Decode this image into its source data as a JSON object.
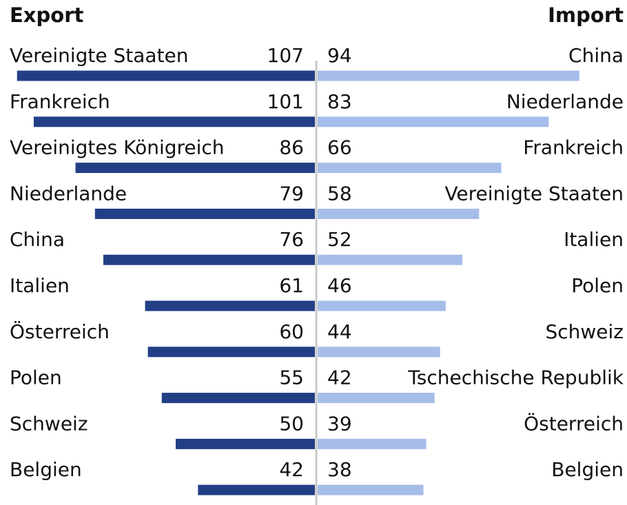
{
  "chart_data": [
    {
      "type": "bar",
      "title": "Export",
      "categories": [
        "Vereinigte Staaten",
        "Frankreich",
        "Vereinigtes Königreich",
        "Niederlande",
        "China",
        "Italien",
        "Österreich",
        "Polen",
        "Schweiz",
        "Belgien"
      ],
      "values": [
        107,
        101,
        86,
        79,
        76,
        61,
        60,
        55,
        50,
        42
      ],
      "color": "#223f86"
    },
    {
      "type": "bar",
      "title": "Import",
      "categories": [
        "China",
        "Niederlande",
        "Frankreich",
        "Vereinigte Staaten",
        "Italien",
        "Polen",
        "Schweiz",
        "Tschechische Republik",
        "Österreich",
        "Belgien"
      ],
      "values": [
        94,
        83,
        66,
        58,
        52,
        46,
        44,
        42,
        39,
        38
      ],
      "color": "#a6bde9"
    }
  ]
}
